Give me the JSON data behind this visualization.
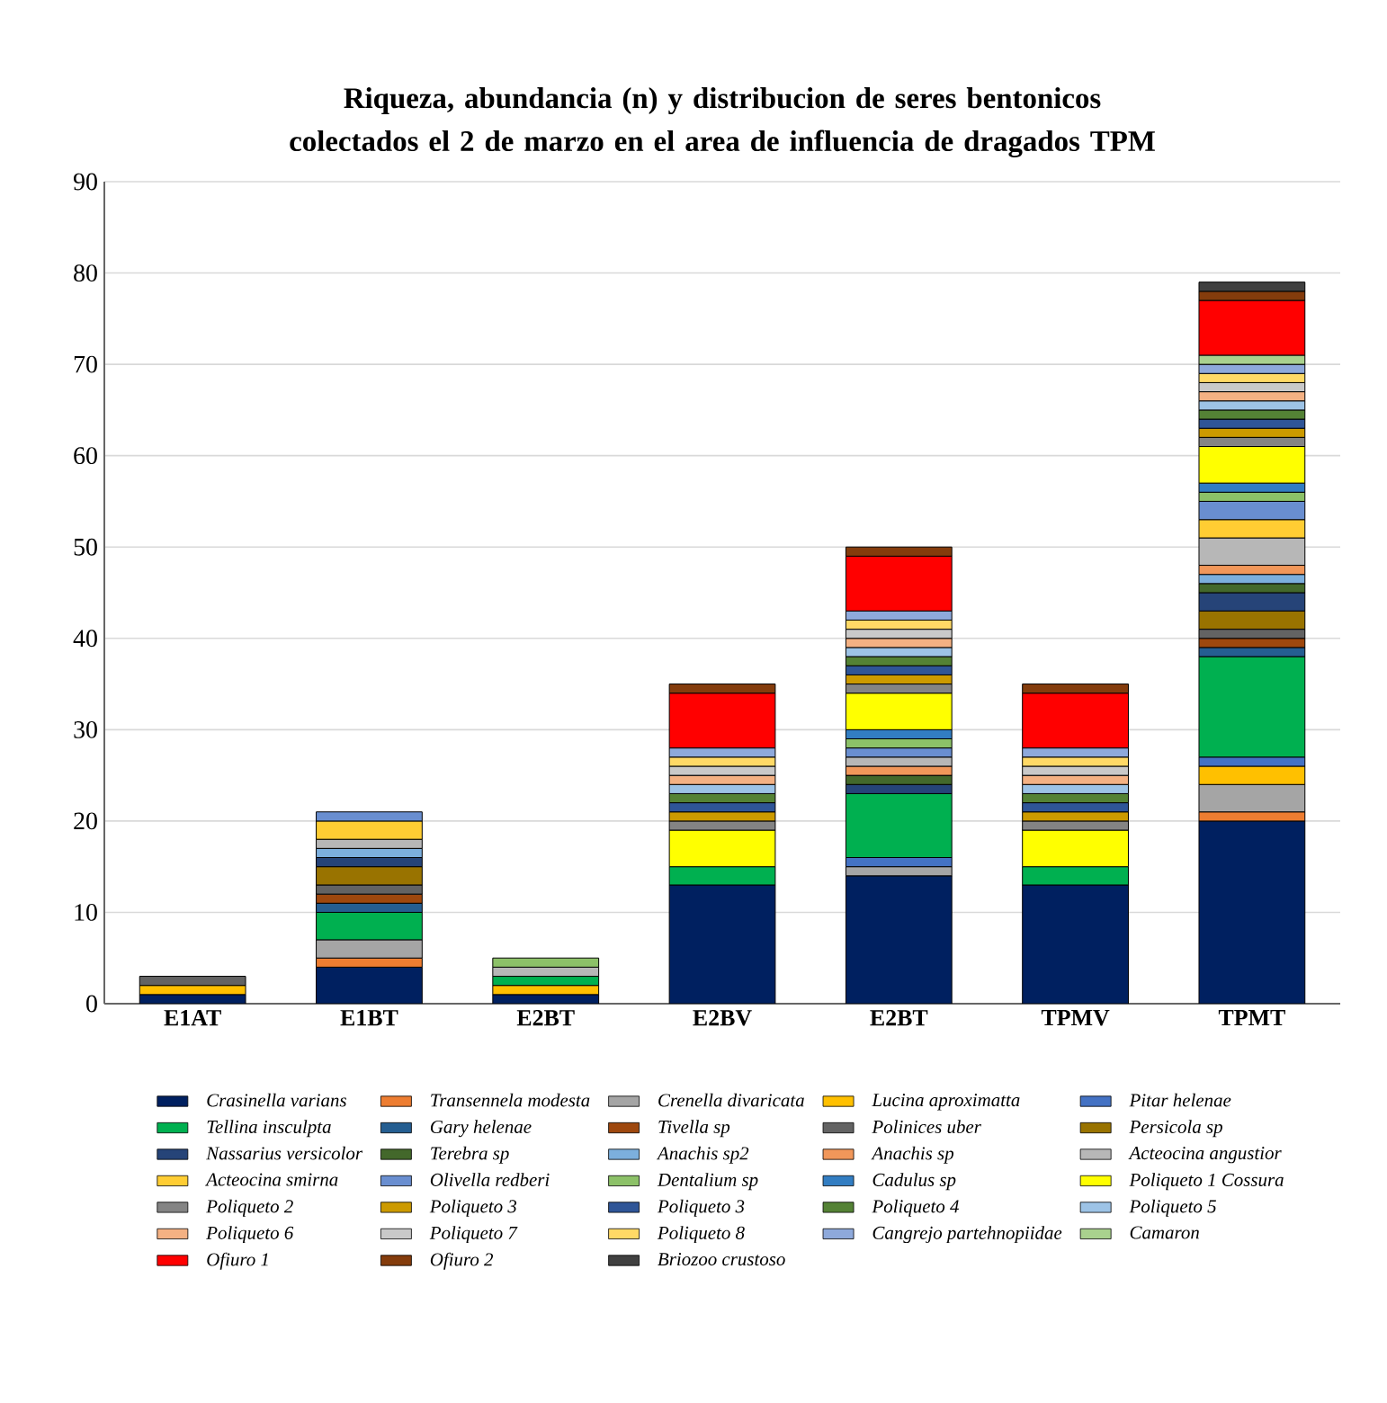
{
  "chart_data": {
    "type": "bar",
    "stacked": true,
    "title": "Riqueza, abundancia (n) y distribucion de seres bentonicos colectados el 2 de marzo en el area de influencia de dragados TPM",
    "categories": [
      "E1AT",
      "E1BT",
      "E2BT",
      "E2BV",
      "E2BT",
      "TPMV",
      "TPMT"
    ],
    "ylim": [
      0,
      90
    ],
    "yticks": [
      0,
      10,
      20,
      30,
      40,
      50,
      60,
      70,
      80,
      90
    ],
    "grid": "y",
    "legend": "bottom",
    "series": [
      {
        "name": "Crasinella varians",
        "color": "#002060",
        "values": [
          1,
          4,
          1,
          13,
          14,
          13,
          20
        ]
      },
      {
        "name": "Transennela modesta",
        "color": "#ed7d31",
        "values": [
          null,
          1,
          null,
          null,
          null,
          null,
          1
        ]
      },
      {
        "name": "Crenella divaricata",
        "color": "#a5a5a5",
        "values": [
          null,
          2,
          null,
          null,
          1,
          null,
          3
        ]
      },
      {
        "name": "Lucina aproximatta",
        "color": "#ffc000",
        "values": [
          1,
          null,
          1,
          null,
          null,
          null,
          2
        ]
      },
      {
        "name": "Pitar helenae",
        "color": "#4472c4",
        "values": [
          null,
          null,
          null,
          null,
          1,
          null,
          1
        ]
      },
      {
        "name": "Tellina insculpta",
        "color": "#00b050",
        "values": [
          null,
          3,
          1,
          2,
          7,
          2,
          11
        ]
      },
      {
        "name": "Gary helenae",
        "color": "#255e91",
        "values": [
          null,
          1,
          null,
          null,
          null,
          null,
          1
        ]
      },
      {
        "name": "Tivella sp",
        "color": "#9e480e",
        "values": [
          null,
          1,
          null,
          null,
          null,
          null,
          1
        ]
      },
      {
        "name": "Polinices uber",
        "color": "#636363",
        "values": [
          1,
          1,
          null,
          null,
          null,
          null,
          1
        ]
      },
      {
        "name": "Persicola sp",
        "color": "#997300",
        "values": [
          null,
          2,
          null,
          null,
          null,
          null,
          2
        ]
      },
      {
        "name": "Nassarius versicolor",
        "color": "#264478",
        "values": [
          null,
          1,
          null,
          null,
          1,
          null,
          2
        ]
      },
      {
        "name": "Terebra sp",
        "color": "#43682b",
        "values": [
          null,
          null,
          null,
          null,
          1,
          null,
          1
        ]
      },
      {
        "name": "Anachis sp2",
        "color": "#7cafdd",
        "values": [
          null,
          1,
          null,
          null,
          null,
          null,
          1
        ]
      },
      {
        "name": "Anachis sp",
        "color": "#f1975a",
        "values": [
          null,
          null,
          null,
          null,
          1,
          null,
          1
        ]
      },
      {
        "name": "Acteocina angustior",
        "color": "#b7b7b7",
        "values": [
          null,
          1,
          1,
          null,
          1,
          null,
          3
        ]
      },
      {
        "name": "Acteocina smirna",
        "color": "#ffcd33",
        "values": [
          null,
          2,
          null,
          null,
          null,
          null,
          2
        ]
      },
      {
        "name": "Olivella redberi",
        "color": "#698ed0",
        "values": [
          null,
          1,
          null,
          null,
          1,
          null,
          2
        ]
      },
      {
        "name": "Dentalium sp",
        "color": "#8cc168",
        "values": [
          null,
          null,
          1,
          null,
          1,
          null,
          1
        ]
      },
      {
        "name": "Cadulus sp",
        "color": "#327dc2",
        "values": [
          null,
          null,
          null,
          null,
          1,
          null,
          1
        ]
      },
      {
        "name": "Poliqueto 1 Cossura",
        "color": "#ffff00",
        "values": [
          null,
          null,
          null,
          4,
          4,
          4,
          4
        ]
      },
      {
        "name": "Poliqueto 2",
        "color": "#848484",
        "values": [
          null,
          null,
          null,
          1,
          1,
          1,
          1
        ]
      },
      {
        "name": "Poliqueto 3",
        "color": "#cc9a00",
        "values": [
          null,
          null,
          null,
          1,
          1,
          1,
          1
        ]
      },
      {
        "name": "Poliqueto 3",
        "color": "#2f5597",
        "values": [
          null,
          null,
          null,
          1,
          1,
          1,
          1
        ]
      },
      {
        "name": "Poliqueto 4",
        "color": "#548235",
        "values": [
          null,
          null,
          null,
          1,
          1,
          1,
          1
        ]
      },
      {
        "name": "Poliqueto 5",
        "color": "#9dc3e6",
        "values": [
          null,
          null,
          null,
          1,
          1,
          1,
          1
        ]
      },
      {
        "name": "Poliqueto 6",
        "color": "#f4b183",
        "values": [
          null,
          null,
          null,
          1,
          1,
          1,
          1
        ]
      },
      {
        "name": "Poliqueto 7",
        "color": "#c9c9c9",
        "values": [
          null,
          null,
          null,
          1,
          1,
          1,
          1
        ]
      },
      {
        "name": "Poliqueto 8",
        "color": "#ffd966",
        "values": [
          null,
          null,
          null,
          1,
          1,
          1,
          1
        ]
      },
      {
        "name": "Cangrejo partehnopiidae",
        "color": "#8ea9db",
        "values": [
          null,
          null,
          null,
          1,
          1,
          1,
          1
        ]
      },
      {
        "name": "Camaron",
        "color": "#a9d18e",
        "values": [
          null,
          null,
          null,
          null,
          null,
          null,
          1
        ]
      },
      {
        "name": "Ofiuro 1",
        "color": "#ff0000",
        "values": [
          null,
          null,
          null,
          6,
          6,
          6,
          6
        ]
      },
      {
        "name": "Ofiuro 2",
        "color": "#843c0c",
        "values": [
          null,
          null,
          null,
          1,
          1,
          1,
          1
        ]
      },
      {
        "name": "Briozoo crustoso",
        "color": "#404040",
        "values": [
          null,
          null,
          null,
          null,
          null,
          null,
          1
        ]
      }
    ]
  }
}
